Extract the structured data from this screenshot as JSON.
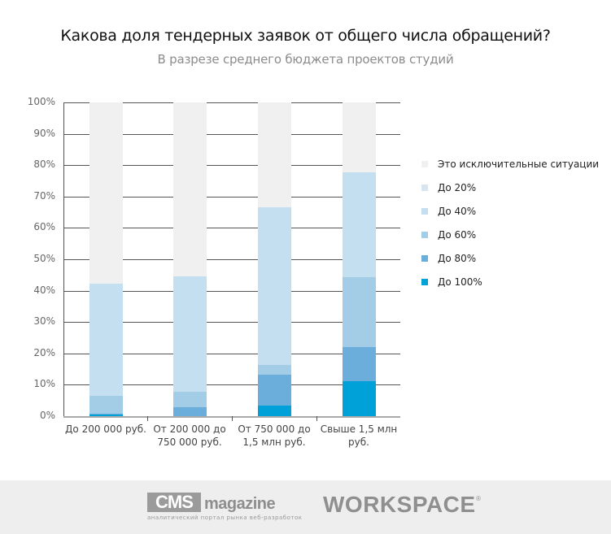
{
  "header": {
    "title": "Какова доля тендерных заявок от общего числа обращений?",
    "subtitle": "В разрезе среднего бюджета проектов студий"
  },
  "chart_data": {
    "type": "bar",
    "stacked": true,
    "title": "Какова доля тендерных заявок от общего числа обращений?",
    "subtitle": "В разрезе среднего бюджета проектов студий",
    "xlabel": "",
    "ylabel": "",
    "ylim": [
      0,
      100
    ],
    "yticks": [
      "0%",
      "10%",
      "20%",
      "30%",
      "40%",
      "50%",
      "60%",
      "70%",
      "80%",
      "90%",
      "100%"
    ],
    "grid": true,
    "legend_position": "right",
    "categories": [
      "До 200 000 руб.",
      "От 200 000 до 750 000 руб.",
      "От 750 000 до 1,5 млн руб.",
      "Свыше 1,5 млн руб."
    ],
    "series": [
      {
        "name": "До 100%",
        "color": "#00a0d8",
        "values": [
          0.5,
          0.0,
          3.4,
          11.1
        ]
      },
      {
        "name": "До 80%",
        "color": "#6baedb",
        "values": [
          0.3,
          2.9,
          9.8,
          10.9
        ]
      },
      {
        "name": "До 60%",
        "color": "#a3cde6",
        "values": [
          5.7,
          4.9,
          3.1,
          22.3
        ]
      },
      {
        "name": "До 40%",
        "color": "#c3dff0",
        "values": [
          35.7,
          36.8,
          50.3,
          33.4
        ]
      },
      {
        "name": "До 20%",
        "color": "#d8e4ef",
        "values": [
          0,
          0,
          0,
          0
        ]
      },
      {
        "name": "Это исключительные ситуации",
        "color": "#f0f0f0",
        "values": [
          57.8,
          55.4,
          33.4,
          22.3
        ]
      }
    ]
  },
  "legend": [
    {
      "label": "Это исключительные ситуации",
      "color": "#f0f0f0"
    },
    {
      "label": "До 20%",
      "color": "#d8e4ef"
    },
    {
      "label": "До 40%",
      "color": "#c3dff0"
    },
    {
      "label": "До 60%",
      "color": "#a3cde6"
    },
    {
      "label": "До 80%",
      "color": "#6baedb"
    },
    {
      "label": "До 100%",
      "color": "#00a0d8"
    }
  ],
  "xlabels": [
    {
      "line1": "До 200 000 руб.",
      "line2": ""
    },
    {
      "line1": "От 200 000 до",
      "line2": "750 000 руб."
    },
    {
      "line1": "От 750 000 до",
      "line2": "1,5 млн руб."
    },
    {
      "line1": "Свыше 1,5 млн",
      "line2": "руб."
    }
  ],
  "footer": {
    "cms_logo": "CMS",
    "cms_magazine": "magazine",
    "cms_tagline": "аналитический портал рынка веб-разработок",
    "workspace_logo": "WORKSPACE",
    "registered": "®"
  }
}
